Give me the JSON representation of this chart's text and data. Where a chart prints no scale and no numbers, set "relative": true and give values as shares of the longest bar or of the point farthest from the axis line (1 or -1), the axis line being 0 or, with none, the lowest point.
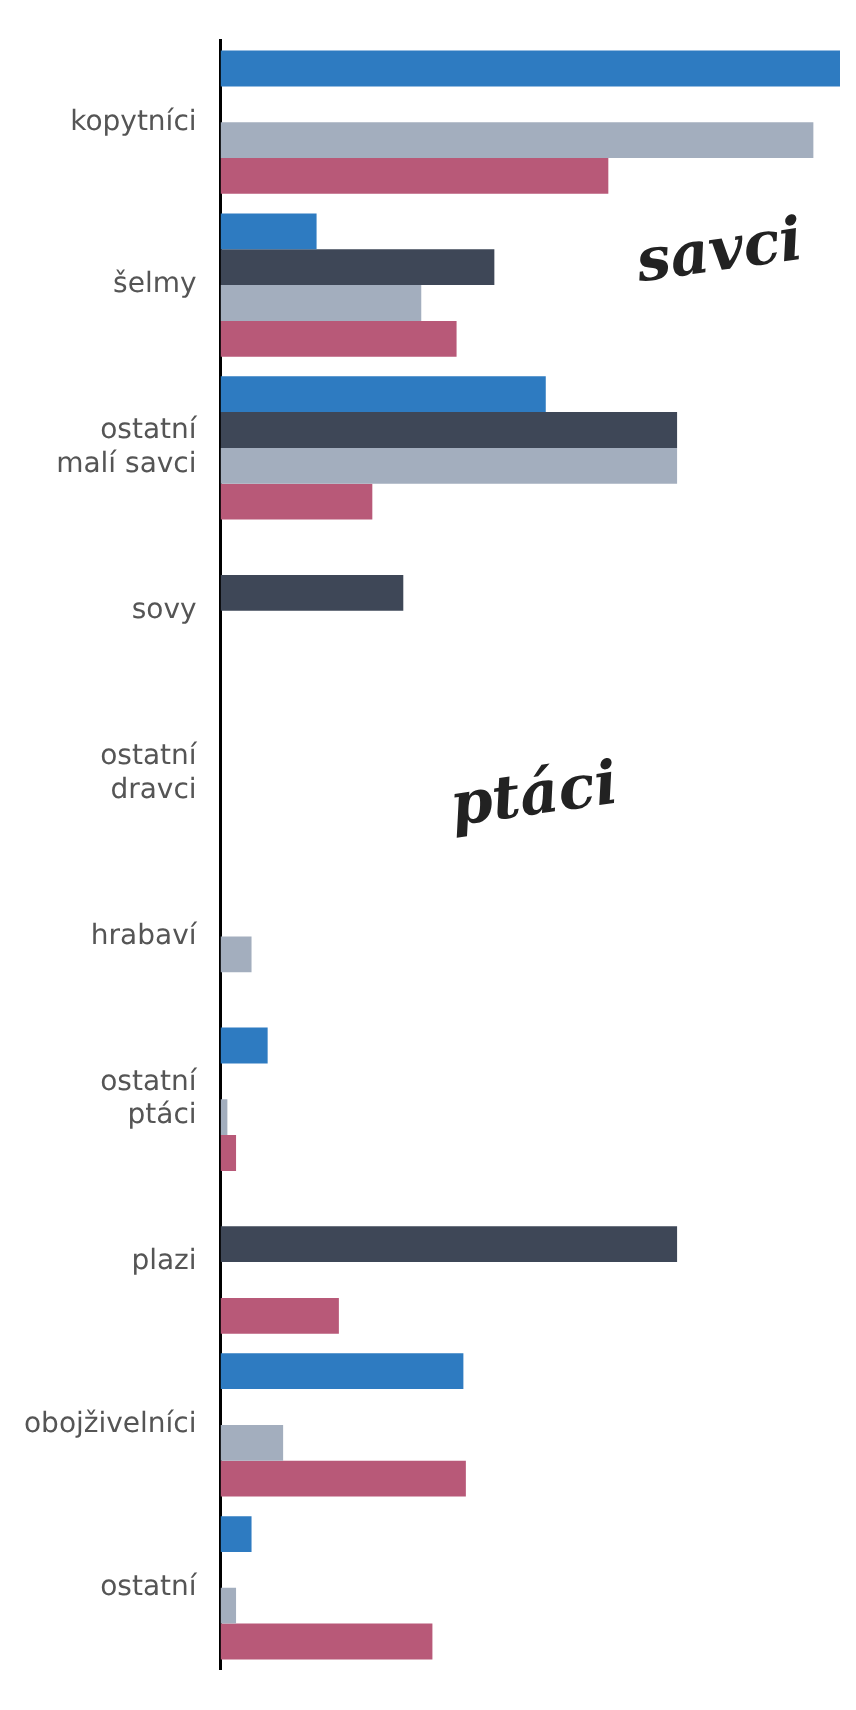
{
  "chart_data": {
    "type": "bar",
    "orientation": "horizontal",
    "relative": true,
    "legend": false,
    "categories": [
      "kopytníci",
      "šelmy",
      "ostatní malí savci",
      "sovy",
      "ostatní dravci",
      "hrabaví",
      "ostatní ptáci",
      "plazi",
      "obojživelníci",
      "ostatní"
    ],
    "series": [
      {
        "color": "#2e7bc1",
        "values": [
          1,
          0.155,
          0.525,
          null,
          null,
          null,
          0.076,
          null,
          0.392,
          0.05
        ]
      },
      {
        "color": "#3e4757",
        "values": [
          null,
          0.442,
          0.737,
          0.295,
          null,
          null,
          null,
          0.737,
          null,
          null
        ]
      },
      {
        "color": "#a3aebe",
        "values": [
          0.957,
          0.324,
          0.737,
          null,
          null,
          0.05,
          0.011,
          null,
          0.101,
          0.025
        ]
      },
      {
        "color": "#b85978",
        "values": [
          0.626,
          0.381,
          0.245,
          null,
          null,
          null,
          0.025,
          0.191,
          0.396,
          0.342
        ]
      }
    ],
    "annotations": [
      "savci",
      "ptáci"
    ]
  }
}
